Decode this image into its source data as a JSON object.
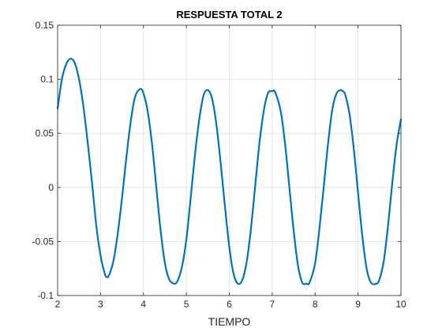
{
  "chart_data": {
    "type": "line",
    "title": "RESPUESTA TOTAL 2",
    "xlabel": "TIEMPO",
    "ylabel": "",
    "xlim": [
      2,
      10
    ],
    "ylim": [
      -0.1,
      0.15
    ],
    "xticks": [
      2,
      3,
      4,
      5,
      6,
      7,
      8,
      9,
      10
    ],
    "yticks": [
      -0.1,
      -0.05,
      0,
      0.05,
      0.1,
      0.15
    ],
    "xtick_labels": [
      "2",
      "3",
      "4",
      "5",
      "6",
      "7",
      "8",
      "9",
      "10"
    ],
    "ytick_labels": [
      "-0.1",
      "-0.05",
      "0",
      "0.05",
      "0.1",
      "0.15"
    ],
    "grid": true,
    "series": [
      {
        "color": "#0072BD",
        "x": [
          2.0,
          2.1,
          2.2,
          2.3,
          2.4,
          2.5,
          2.6,
          2.7,
          2.8,
          2.9,
          3.0,
          3.1,
          3.15,
          3.2,
          3.3,
          3.4,
          3.5,
          3.6,
          3.7,
          3.8,
          3.92,
          4.0,
          4.1,
          4.2,
          4.3,
          4.4,
          4.5,
          4.6,
          4.72,
          4.8,
          4.9,
          5.0,
          5.1,
          5.2,
          5.3,
          5.4,
          5.5,
          5.6,
          5.7,
          5.8,
          5.9,
          6.0,
          6.1,
          6.2,
          6.3,
          6.4,
          6.5,
          6.6,
          6.7,
          6.8,
          6.9,
          7.0,
          7.07,
          7.2,
          7.3,
          7.4,
          7.5,
          7.6,
          7.7,
          7.8,
          7.87,
          8.0,
          8.1,
          8.2,
          8.3,
          8.4,
          8.5,
          8.6,
          8.64,
          8.7,
          8.8,
          8.9,
          9.0,
          9.1,
          9.2,
          9.3,
          9.43,
          9.5,
          9.6,
          9.7,
          9.8,
          9.9,
          10.0
        ],
        "y": [
          0.073,
          0.1,
          0.114,
          0.119,
          0.115,
          0.1,
          0.075,
          0.042,
          0.005,
          -0.035,
          -0.063,
          -0.08,
          -0.083,
          -0.081,
          -0.068,
          -0.043,
          -0.01,
          0.027,
          0.06,
          0.083,
          0.091,
          0.087,
          0.07,
          0.04,
          0.0,
          -0.04,
          -0.07,
          -0.085,
          -0.089,
          -0.086,
          -0.073,
          -0.048,
          -0.01,
          0.03,
          0.063,
          0.085,
          0.09,
          0.082,
          0.058,
          0.022,
          -0.018,
          -0.055,
          -0.08,
          -0.089,
          -0.086,
          -0.07,
          -0.04,
          0.0,
          0.04,
          0.07,
          0.087,
          0.089,
          0.088,
          0.07,
          0.04,
          0.0,
          -0.04,
          -0.072,
          -0.088,
          -0.089,
          -0.088,
          -0.07,
          -0.038,
          0.0,
          0.04,
          0.072,
          0.087,
          0.09,
          0.089,
          0.086,
          0.068,
          0.036,
          -0.005,
          -0.045,
          -0.075,
          -0.088,
          -0.089,
          -0.085,
          -0.068,
          -0.035,
          0.005,
          0.04,
          0.063
        ]
      }
    ]
  },
  "colors": {
    "line": "#0072BD",
    "grid": "#dfdfdf",
    "axis": "#262626",
    "background": "#ffffff"
  }
}
